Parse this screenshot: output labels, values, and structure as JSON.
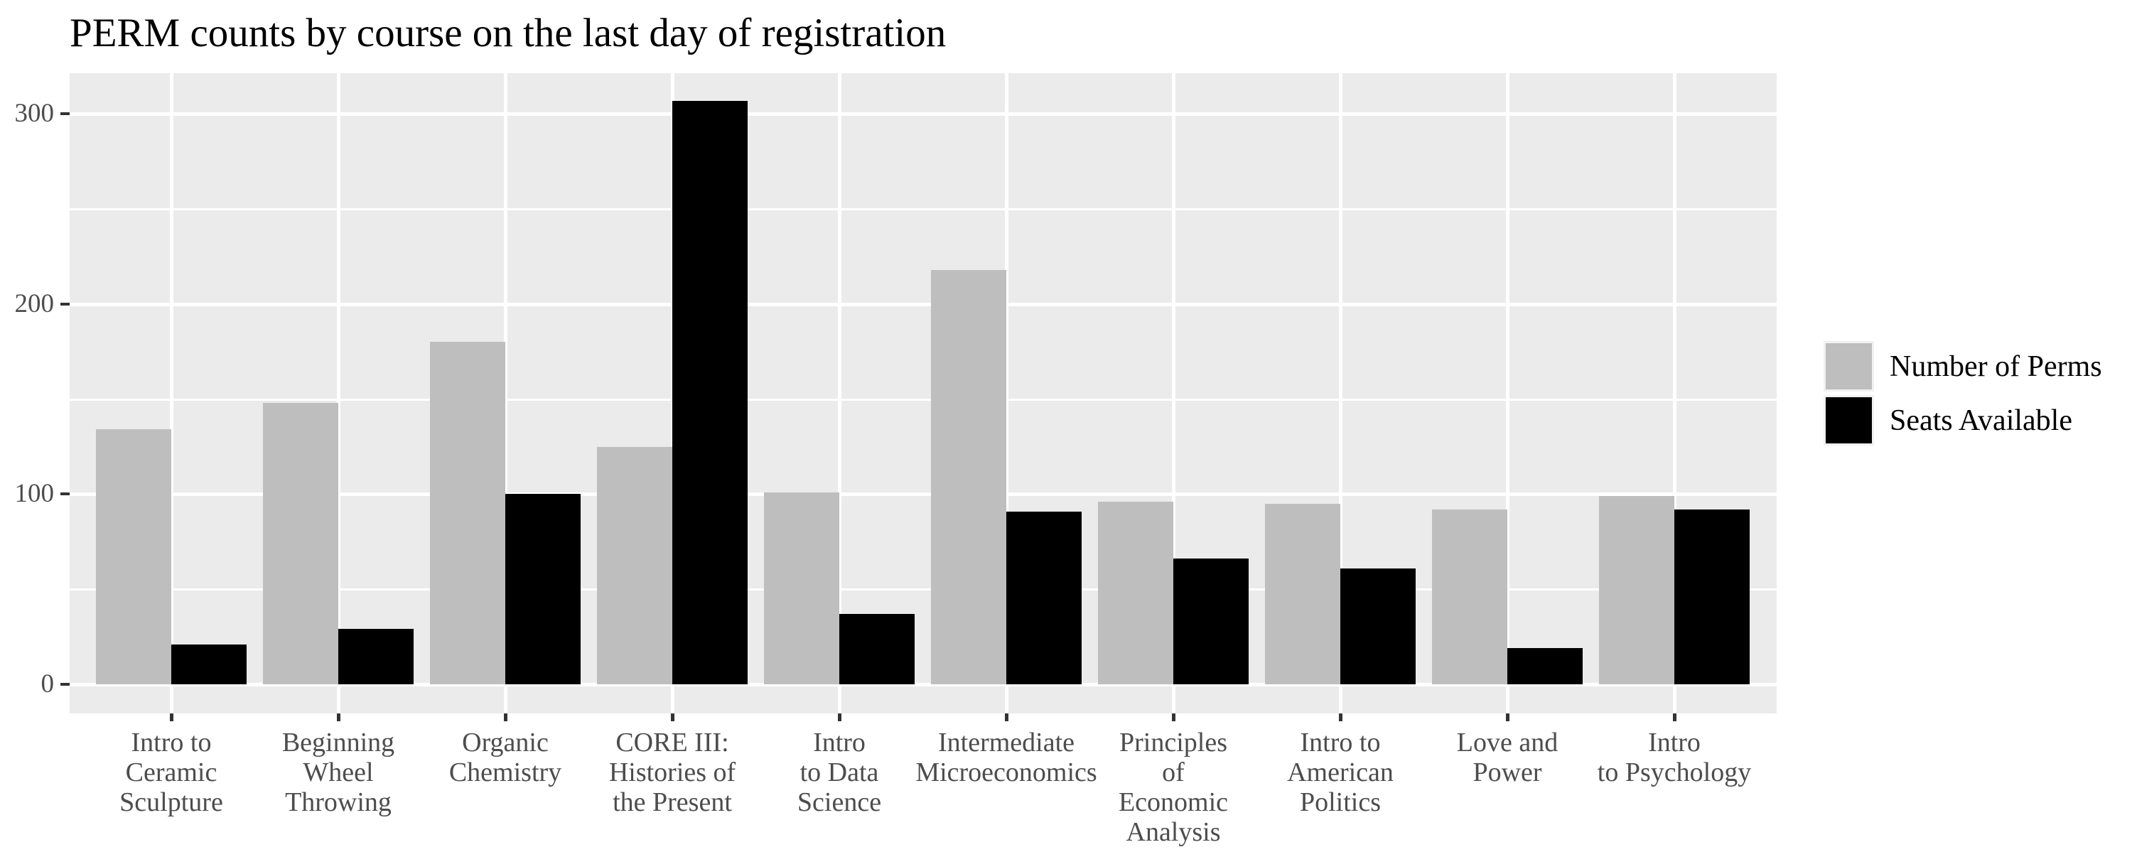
{
  "chart_data": {
    "type": "bar",
    "title": "PERM counts by course on the last day of registration",
    "categories": [
      "Intro to Ceramic Sculpture",
      "Beginning Wheel Throwing",
      "Organic Chemistry",
      "CORE III: Histories of the Present",
      "Intro to Data Science",
      "Intermediate Microeconomics",
      "Principles of Economic Analysis",
      "Intro to American Politics",
      "Love and Power",
      "Intro to Psychology"
    ],
    "category_label_lines": [
      [
        "Intro to",
        "Ceramic",
        "Sculpture"
      ],
      [
        "Beginning",
        "Wheel",
        "Throwing"
      ],
      [
        "Organic",
        "Chemistry"
      ],
      [
        "CORE III:",
        "Histories of",
        "the Present"
      ],
      [
        "Intro",
        "to Data",
        "Science"
      ],
      [
        "Intermediate",
        "Microeconomics"
      ],
      [
        "Principles",
        "of",
        "Economic",
        "Analysis"
      ],
      [
        "Intro to",
        "American",
        "Politics"
      ],
      [
        "Love and",
        "Power"
      ],
      [
        "Intro",
        "to Psychology"
      ]
    ],
    "series": [
      {
        "name": "Number of Perms",
        "color": "#bebebe",
        "values": [
          134,
          148,
          180,
          125,
          101,
          218,
          96,
          95,
          92,
          99
        ]
      },
      {
        "name": "Seats Available",
        "color": "#000000",
        "values": [
          21,
          29,
          100,
          307,
          37,
          91,
          66,
          61,
          19,
          92
        ]
      }
    ],
    "xlabel": "",
    "ylabel": "",
    "y_tick_labels": [
      "0",
      "100",
      "200",
      "300"
    ],
    "y_major_values": [
      0,
      100,
      200,
      300
    ],
    "y_minor_values": [
      50,
      150,
      250
    ],
    "ylim": [
      0,
      322
    ],
    "grid": "horizontal major+minor, vertical major at category centers",
    "legend_position": "right-center",
    "colors": {
      "panel_bg": "#ebebeb",
      "gridline": "#ffffff",
      "bar_gray": "#bebebe",
      "bar_black": "#000000",
      "axis_text": "#4d4d4d",
      "tick_mark": "#333333",
      "title_text": "#000000",
      "legend_key_bg": "#f1f1f1"
    }
  }
}
